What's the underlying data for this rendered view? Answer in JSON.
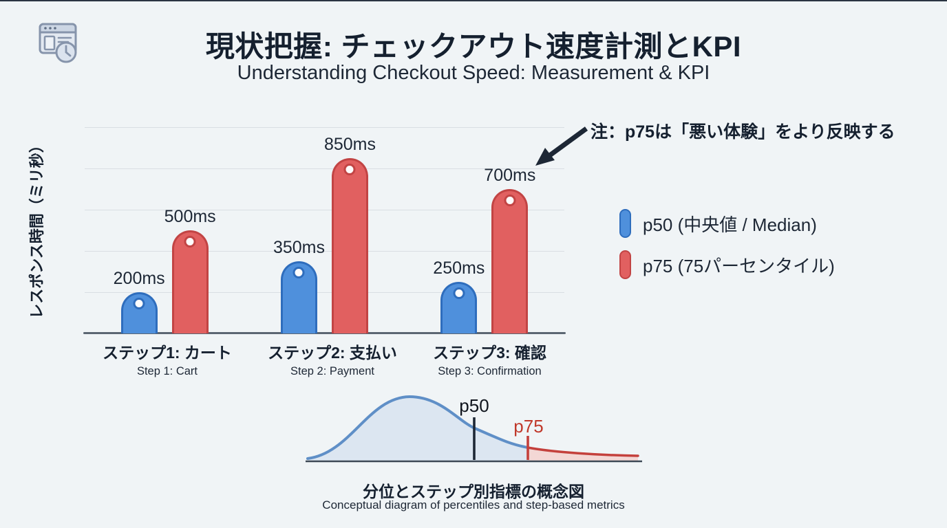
{
  "header": {
    "title": "現状把握: チェックアウト速度計測とKPI",
    "subtitle": "Understanding Checkout Speed: Measurement & KPI",
    "icon": "browser-window-clock-icon"
  },
  "chart": {
    "y_axis_label": "レスポンス時間（ミリ秒）",
    "annotation": "注：p75は「悪い体験」をより反映する",
    "legend": [
      {
        "swatch": "blue-pill",
        "label": "p50 (中央値 / Median)",
        "color": "#4f90dc",
        "border": "#2e6dbd"
      },
      {
        "swatch": "red-pill",
        "label": "p75 (75パーセンタイル)",
        "color": "#e16060",
        "border": "#c24444"
      }
    ]
  },
  "chart_data": {
    "type": "bar",
    "title": "現状把握: チェックアウト速度計測とKPI",
    "subtitle": "Understanding Checkout Speed: Measurement & KPI",
    "categories": [
      "ステップ1: カート",
      "ステップ2: 支払い",
      "ステップ3: 確認"
    ],
    "categories_en": [
      "Step 1: Cart",
      "Step 2: Payment",
      "Step 3: Confirmation"
    ],
    "series": [
      {
        "name": "p50 (中央値 / Median)",
        "values": [
          200,
          350,
          250
        ],
        "labels": [
          "200ms",
          "350ms",
          "250ms"
        ],
        "color": "#4f90dc"
      },
      {
        "name": "p75 (75パーセンタイル)",
        "values": [
          500,
          850,
          700
        ],
        "labels": [
          "500ms",
          "850ms",
          "700ms"
        ],
        "color": "#e16060"
      }
    ],
    "unit": "ms",
    "ylabel": "レスポンス時間（ミリ秒）",
    "ylim": [
      0,
      1000
    ],
    "grid": "horizontal, every 200ms",
    "legend_position": "right",
    "annotation": "注：p75は「悪い体験」をより反映する"
  },
  "distribution": {
    "p50_label": "p50",
    "p75_label": "p75",
    "caption_ja": "分位とステップ別指標の概念図",
    "caption_en": "Conceptual diagram of percentiles and step-based metrics",
    "curve_color": "#5f8fc7",
    "tail_color": "#c4403c"
  }
}
